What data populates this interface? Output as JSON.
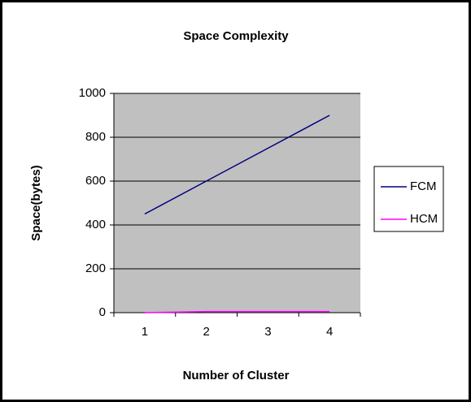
{
  "chart_data": {
    "type": "line",
    "title": "Space Complexity",
    "x_label": "Number of Cluster",
    "y_label": "Space(bytes)",
    "categories": [
      "1",
      "2",
      "3",
      "4"
    ],
    "series": [
      {
        "name": "FCM",
        "color": "#000080",
        "values": [
          450,
          600,
          750,
          900
        ]
      },
      {
        "name": "HCM",
        "color": "#ff00ff",
        "values": [
          0,
          5,
          5,
          5
        ]
      }
    ],
    "ylim": [
      0,
      1000
    ],
    "yticks": [
      0,
      200,
      400,
      600,
      800,
      1000
    ],
    "grid": true,
    "legend": "right"
  }
}
